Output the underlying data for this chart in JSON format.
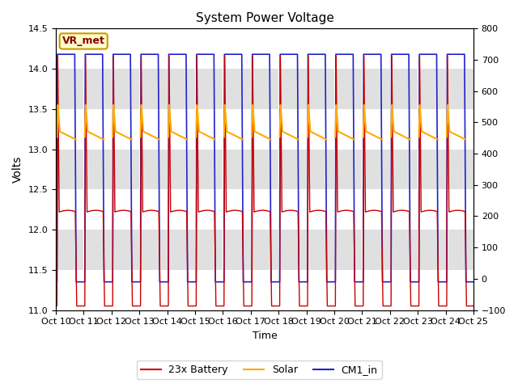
{
  "title": "System Power Voltage",
  "xlabel": "Time",
  "ylabel_left": "Volts",
  "ylim_left": [
    11.0,
    14.5
  ],
  "ylim_right": [
    -100,
    800
  ],
  "yticks_left": [
    11.0,
    11.5,
    12.0,
    12.5,
    13.0,
    13.5,
    14.0,
    14.5
  ],
  "yticks_right": [
    -100,
    0,
    100,
    200,
    300,
    400,
    500,
    600,
    700,
    800
  ],
  "num_cycles": 15,
  "xtick_labels": [
    "Oct 10",
    "Oct 11",
    "Oct 12",
    "Oct 13",
    "Oct 14",
    "Oct 15",
    "Oct 16",
    "Oct 17",
    "Oct 18",
    "Oct 19",
    "Oct 20",
    "Oct 21",
    "Oct 22",
    "Oct 23",
    "Oct 24",
    "Oct 25"
  ],
  "battery_color": "#cc0000",
  "solar_color": "#ffaa00",
  "cm1_color": "#2222cc",
  "battery_label": "23x Battery",
  "solar_label": "Solar",
  "cm1_label": "CM1_in",
  "vr_met_label": "VR_met",
  "background_color": "#ffffff",
  "plot_bg_color": "#e0e0e0",
  "grid_color": "#ffffff",
  "annotation_bg": "#ffffcc",
  "annotation_border": "#cc9900",
  "band_color": "#cccccc"
}
